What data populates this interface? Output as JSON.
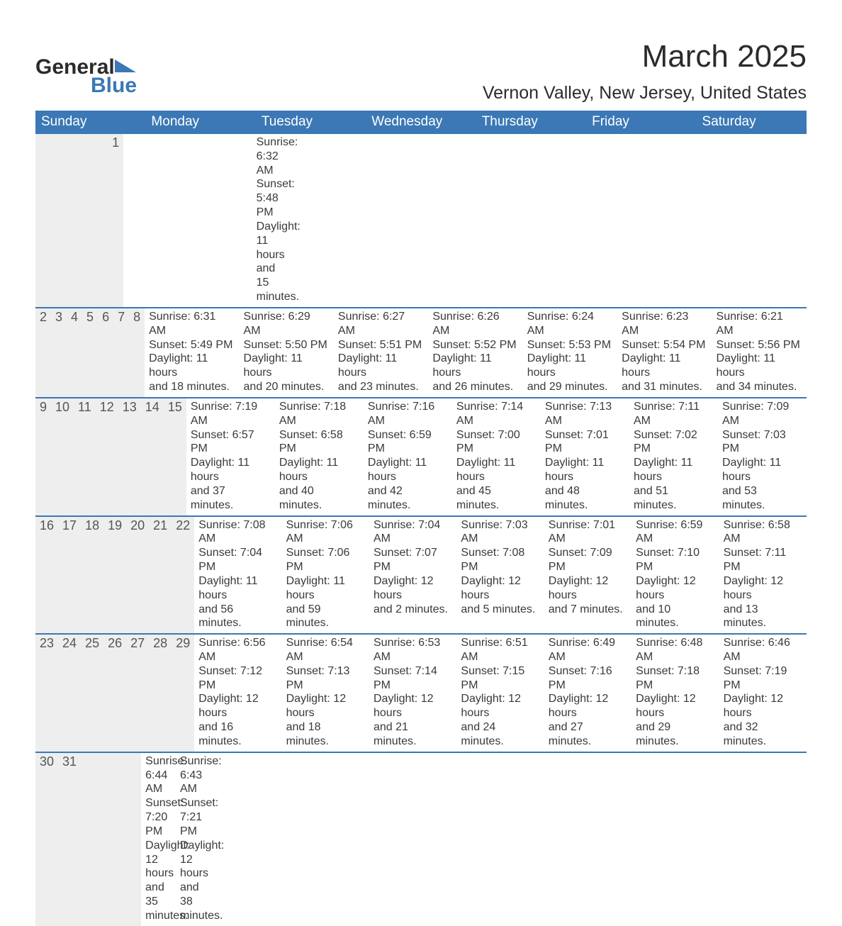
{
  "logo": {
    "text1": "General",
    "text2": "Blue"
  },
  "title": "March 2025",
  "subtitle": "Vernon Valley, New Jersey, United States",
  "colors": {
    "header_bg": "#3b78b5",
    "header_text": "#ffffff",
    "daynum_bg": "#eeeeee",
    "border": "#3b78b5",
    "text": "#3a3a3a",
    "background": "#ffffff"
  },
  "font": {
    "family": "Arial",
    "body_size_pt": 12,
    "title_size_pt": 33,
    "subtitle_size_pt": 19,
    "header_size_pt": 14
  },
  "headers": [
    "Sunday",
    "Monday",
    "Tuesday",
    "Wednesday",
    "Thursday",
    "Friday",
    "Saturday"
  ],
  "weeks": [
    [
      null,
      null,
      null,
      null,
      null,
      null,
      {
        "day": "1",
        "sunrise": "Sunrise: 6:32 AM",
        "sunset": "Sunset: 5:48 PM",
        "daylight1": "Daylight: 11 hours",
        "daylight2": "and 15 minutes."
      }
    ],
    [
      {
        "day": "2",
        "sunrise": "Sunrise: 6:31 AM",
        "sunset": "Sunset: 5:49 PM",
        "daylight1": "Daylight: 11 hours",
        "daylight2": "and 18 minutes."
      },
      {
        "day": "3",
        "sunrise": "Sunrise: 6:29 AM",
        "sunset": "Sunset: 5:50 PM",
        "daylight1": "Daylight: 11 hours",
        "daylight2": "and 20 minutes."
      },
      {
        "day": "4",
        "sunrise": "Sunrise: 6:27 AM",
        "sunset": "Sunset: 5:51 PM",
        "daylight1": "Daylight: 11 hours",
        "daylight2": "and 23 minutes."
      },
      {
        "day": "5",
        "sunrise": "Sunrise: 6:26 AM",
        "sunset": "Sunset: 5:52 PM",
        "daylight1": "Daylight: 11 hours",
        "daylight2": "and 26 minutes."
      },
      {
        "day": "6",
        "sunrise": "Sunrise: 6:24 AM",
        "sunset": "Sunset: 5:53 PM",
        "daylight1": "Daylight: 11 hours",
        "daylight2": "and 29 minutes."
      },
      {
        "day": "7",
        "sunrise": "Sunrise: 6:23 AM",
        "sunset": "Sunset: 5:54 PM",
        "daylight1": "Daylight: 11 hours",
        "daylight2": "and 31 minutes."
      },
      {
        "day": "8",
        "sunrise": "Sunrise: 6:21 AM",
        "sunset": "Sunset: 5:56 PM",
        "daylight1": "Daylight: 11 hours",
        "daylight2": "and 34 minutes."
      }
    ],
    [
      {
        "day": "9",
        "sunrise": "Sunrise: 7:19 AM",
        "sunset": "Sunset: 6:57 PM",
        "daylight1": "Daylight: 11 hours",
        "daylight2": "and 37 minutes."
      },
      {
        "day": "10",
        "sunrise": "Sunrise: 7:18 AM",
        "sunset": "Sunset: 6:58 PM",
        "daylight1": "Daylight: 11 hours",
        "daylight2": "and 40 minutes."
      },
      {
        "day": "11",
        "sunrise": "Sunrise: 7:16 AM",
        "sunset": "Sunset: 6:59 PM",
        "daylight1": "Daylight: 11 hours",
        "daylight2": "and 42 minutes."
      },
      {
        "day": "12",
        "sunrise": "Sunrise: 7:14 AM",
        "sunset": "Sunset: 7:00 PM",
        "daylight1": "Daylight: 11 hours",
        "daylight2": "and 45 minutes."
      },
      {
        "day": "13",
        "sunrise": "Sunrise: 7:13 AM",
        "sunset": "Sunset: 7:01 PM",
        "daylight1": "Daylight: 11 hours",
        "daylight2": "and 48 minutes."
      },
      {
        "day": "14",
        "sunrise": "Sunrise: 7:11 AM",
        "sunset": "Sunset: 7:02 PM",
        "daylight1": "Daylight: 11 hours",
        "daylight2": "and 51 minutes."
      },
      {
        "day": "15",
        "sunrise": "Sunrise: 7:09 AM",
        "sunset": "Sunset: 7:03 PM",
        "daylight1": "Daylight: 11 hours",
        "daylight2": "and 53 minutes."
      }
    ],
    [
      {
        "day": "16",
        "sunrise": "Sunrise: 7:08 AM",
        "sunset": "Sunset: 7:04 PM",
        "daylight1": "Daylight: 11 hours",
        "daylight2": "and 56 minutes."
      },
      {
        "day": "17",
        "sunrise": "Sunrise: 7:06 AM",
        "sunset": "Sunset: 7:06 PM",
        "daylight1": "Daylight: 11 hours",
        "daylight2": "and 59 minutes."
      },
      {
        "day": "18",
        "sunrise": "Sunrise: 7:04 AM",
        "sunset": "Sunset: 7:07 PM",
        "daylight1": "Daylight: 12 hours",
        "daylight2": "and 2 minutes."
      },
      {
        "day": "19",
        "sunrise": "Sunrise: 7:03 AM",
        "sunset": "Sunset: 7:08 PM",
        "daylight1": "Daylight: 12 hours",
        "daylight2": "and 5 minutes."
      },
      {
        "day": "20",
        "sunrise": "Sunrise: 7:01 AM",
        "sunset": "Sunset: 7:09 PM",
        "daylight1": "Daylight: 12 hours",
        "daylight2": "and 7 minutes."
      },
      {
        "day": "21",
        "sunrise": "Sunrise: 6:59 AM",
        "sunset": "Sunset: 7:10 PM",
        "daylight1": "Daylight: 12 hours",
        "daylight2": "and 10 minutes."
      },
      {
        "day": "22",
        "sunrise": "Sunrise: 6:58 AM",
        "sunset": "Sunset: 7:11 PM",
        "daylight1": "Daylight: 12 hours",
        "daylight2": "and 13 minutes."
      }
    ],
    [
      {
        "day": "23",
        "sunrise": "Sunrise: 6:56 AM",
        "sunset": "Sunset: 7:12 PM",
        "daylight1": "Daylight: 12 hours",
        "daylight2": "and 16 minutes."
      },
      {
        "day": "24",
        "sunrise": "Sunrise: 6:54 AM",
        "sunset": "Sunset: 7:13 PM",
        "daylight1": "Daylight: 12 hours",
        "daylight2": "and 18 minutes."
      },
      {
        "day": "25",
        "sunrise": "Sunrise: 6:53 AM",
        "sunset": "Sunset: 7:14 PM",
        "daylight1": "Daylight: 12 hours",
        "daylight2": "and 21 minutes."
      },
      {
        "day": "26",
        "sunrise": "Sunrise: 6:51 AM",
        "sunset": "Sunset: 7:15 PM",
        "daylight1": "Daylight: 12 hours",
        "daylight2": "and 24 minutes."
      },
      {
        "day": "27",
        "sunrise": "Sunrise: 6:49 AM",
        "sunset": "Sunset: 7:16 PM",
        "daylight1": "Daylight: 12 hours",
        "daylight2": "and 27 minutes."
      },
      {
        "day": "28",
        "sunrise": "Sunrise: 6:48 AM",
        "sunset": "Sunset: 7:18 PM",
        "daylight1": "Daylight: 12 hours",
        "daylight2": "and 29 minutes."
      },
      {
        "day": "29",
        "sunrise": "Sunrise: 6:46 AM",
        "sunset": "Sunset: 7:19 PM",
        "daylight1": "Daylight: 12 hours",
        "daylight2": "and 32 minutes."
      }
    ],
    [
      {
        "day": "30",
        "sunrise": "Sunrise: 6:44 AM",
        "sunset": "Sunset: 7:20 PM",
        "daylight1": "Daylight: 12 hours",
        "daylight2": "and 35 minutes."
      },
      {
        "day": "31",
        "sunrise": "Sunrise: 6:43 AM",
        "sunset": "Sunset: 7:21 PM",
        "daylight1": "Daylight: 12 hours",
        "daylight2": "and 38 minutes."
      },
      null,
      null,
      null,
      null,
      null
    ]
  ]
}
